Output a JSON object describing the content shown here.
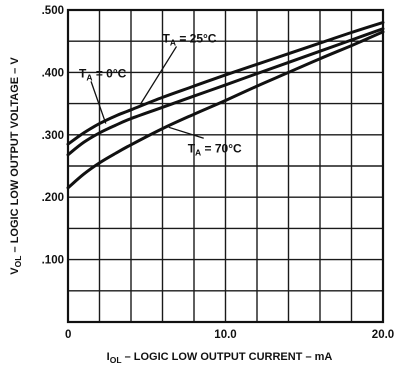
{
  "chart_data": {
    "type": "line",
    "title": "",
    "xlabel": {
      "main": "I",
      "sub": "OL",
      "rest": " – LOGIC LOW OUTPUT CURRENT – mA"
    },
    "ylabel": {
      "main": "V",
      "sub": "OL",
      "rest": " – LOGIC LOW OUTPUT VOLTAGE – V"
    },
    "xlim": [
      0,
      20
    ],
    "ylim": [
      0,
      0.5
    ],
    "x_ticks": [
      {
        "value": 0,
        "label": "0"
      },
      {
        "value": 10,
        "label": "10.0"
      },
      {
        "value": 20,
        "label": "20.0"
      }
    ],
    "y_ticks": [
      {
        "value": 0.5,
        "label": ".500"
      },
      {
        "value": 0.4,
        "label": ".400"
      },
      {
        "value": 0.3,
        "label": ".300"
      },
      {
        "value": 0.2,
        "label": ".200"
      },
      {
        "value": 0.1,
        "label": ".100"
      }
    ],
    "grid": true,
    "x_grid_step": 2,
    "y_grid_step": 0.05,
    "series": [
      {
        "id": "ta-0",
        "label": {
          "pre": "T",
          "sub": "A",
          "post": " = 0°C"
        },
        "x": [
          0,
          1,
          2,
          3,
          4,
          6,
          8,
          10,
          12,
          14,
          16,
          18,
          20
        ],
        "y": [
          0.268,
          0.288,
          0.303,
          0.315,
          0.326,
          0.344,
          0.362,
          0.38,
          0.398,
          0.416,
          0.434,
          0.452,
          0.47
        ]
      },
      {
        "id": "ta-25",
        "label": {
          "pre": "T",
          "sub": "A",
          "post": " = 25°C"
        },
        "x": [
          0,
          1,
          2,
          3,
          4,
          6,
          8,
          10,
          12,
          14,
          16,
          18,
          20
        ],
        "y": [
          0.285,
          0.303,
          0.318,
          0.33,
          0.34,
          0.36,
          0.378,
          0.396,
          0.413,
          0.43,
          0.447,
          0.464,
          0.48
        ]
      },
      {
        "id": "ta-70",
        "label": {
          "pre": "T",
          "sub": "A",
          "post": " = 70°C"
        },
        "x": [
          0,
          1,
          2,
          3,
          4,
          6,
          8,
          10,
          12,
          14,
          16,
          18,
          20
        ],
        "y": [
          0.215,
          0.237,
          0.255,
          0.27,
          0.284,
          0.31,
          0.333,
          0.355,
          0.378,
          0.4,
          0.422,
          0.443,
          0.465
        ]
      }
    ],
    "annotations": [
      {
        "series": "ta-25",
        "anchor_x": 6.0,
        "anchor_y": 0.448,
        "target_x": 4.6,
        "target_y": 0.349
      },
      {
        "series": "ta-0",
        "anchor_x": 0.7,
        "anchor_y": 0.392,
        "target_x": 2.4,
        "target_y": 0.318
      },
      {
        "series": "ta-70",
        "anchor_x": 7.6,
        "anchor_y": 0.272,
        "target_x": 6.4,
        "target_y": 0.312
      }
    ]
  }
}
